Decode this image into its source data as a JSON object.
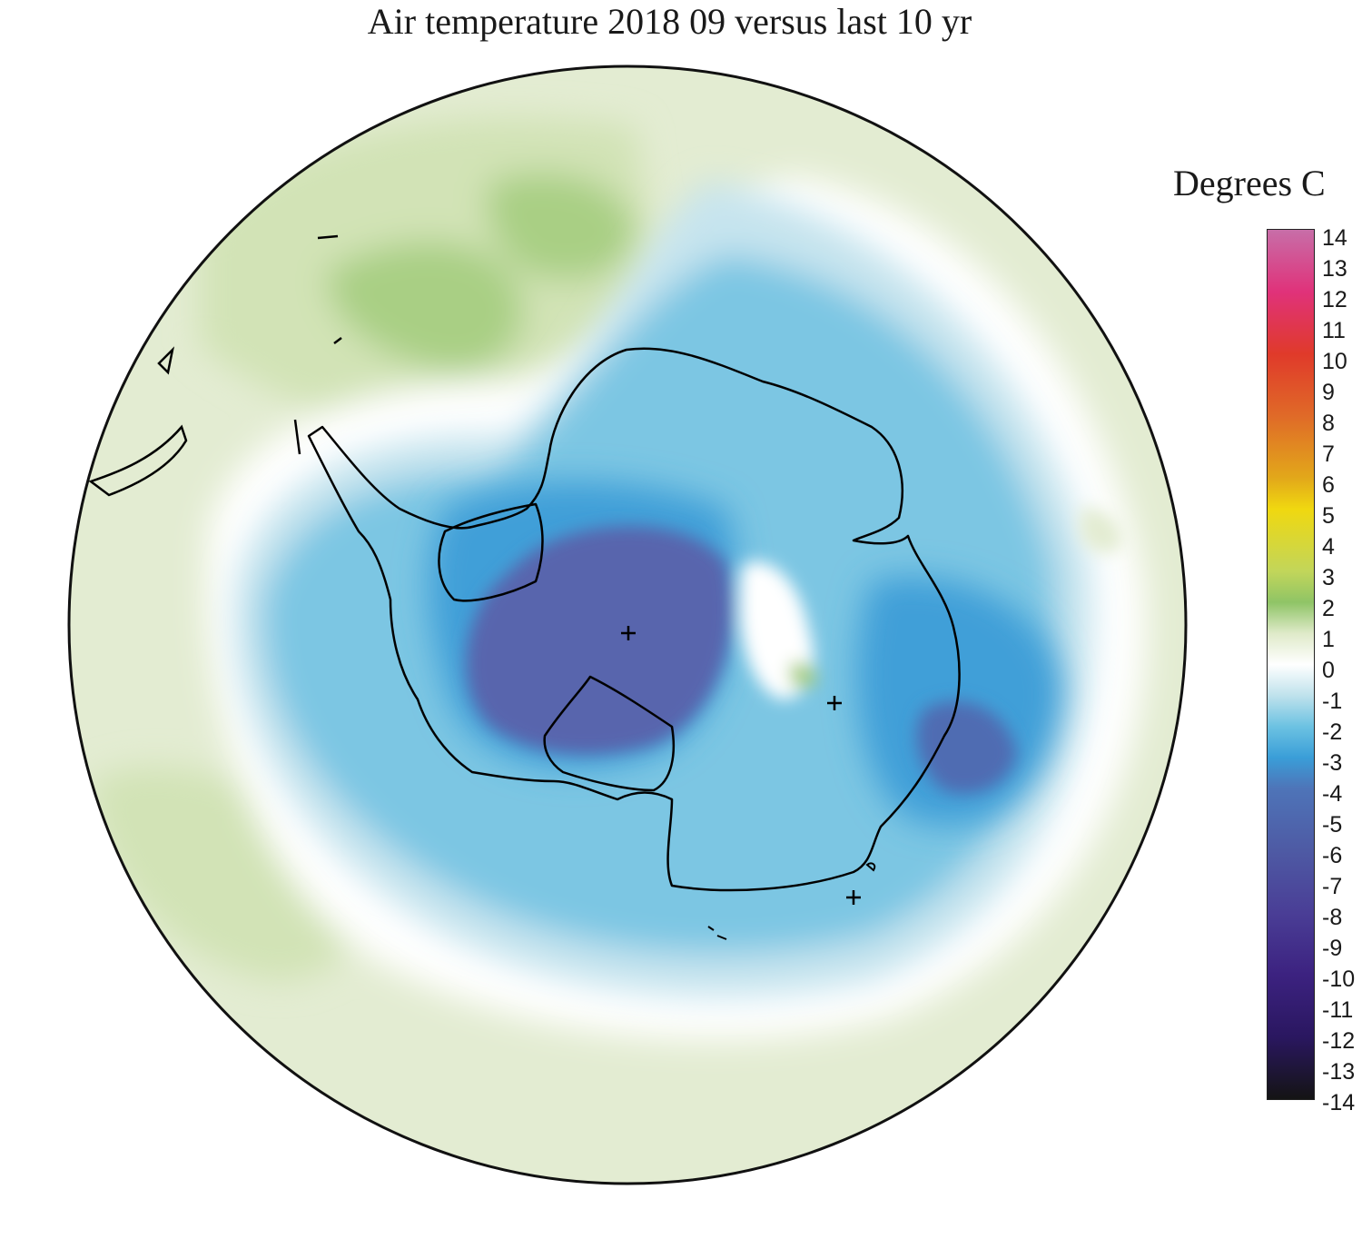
{
  "title": "Air temperature 2018 09 versus last 10 yr",
  "legend": {
    "title": "Degrees C",
    "min": -14,
    "max": 14,
    "ticks": [
      "14",
      "13",
      "12",
      "11",
      "10",
      "9",
      "8",
      "7",
      "6",
      "5",
      "4",
      "3",
      "2",
      "1",
      "0",
      "-1",
      "-2",
      "-3",
      "-4",
      "-5",
      "-6",
      "-7",
      "-8",
      "-9",
      "-10",
      "-11",
      "-12",
      "-13",
      "-14"
    ],
    "stops": [
      {
        "value": 14,
        "color": "#c76ea8"
      },
      {
        "value": 12,
        "color": "#e0327a"
      },
      {
        "value": 10,
        "color": "#e03a2a"
      },
      {
        "value": 8,
        "color": "#e06a28"
      },
      {
        "value": 6,
        "color": "#e2a81a"
      },
      {
        "value": 5,
        "color": "#f0d810"
      },
      {
        "value": 3,
        "color": "#c2d65a"
      },
      {
        "value": 2,
        "color": "#8fc466"
      },
      {
        "value": 1,
        "color": "#dfeac9"
      },
      {
        "value": 0,
        "color": "#ffffff"
      },
      {
        "value": -1,
        "color": "#bfe2ec"
      },
      {
        "value": -2,
        "color": "#6cc2e2"
      },
      {
        "value": -3,
        "color": "#3a9ed8"
      },
      {
        "value": -4,
        "color": "#4e74b8"
      },
      {
        "value": -6,
        "color": "#4e5aa4"
      },
      {
        "value": -8,
        "color": "#4a3e96"
      },
      {
        "value": -10,
        "color": "#3c2280"
      },
      {
        "value": -12,
        "color": "#2a1760"
      },
      {
        "value": -14,
        "color": "#141414"
      }
    ]
  },
  "map": {
    "projection": "south polar stereographic",
    "region": "Antarctica and Southern Ocean",
    "variable": "air temperature anomaly"
  }
}
